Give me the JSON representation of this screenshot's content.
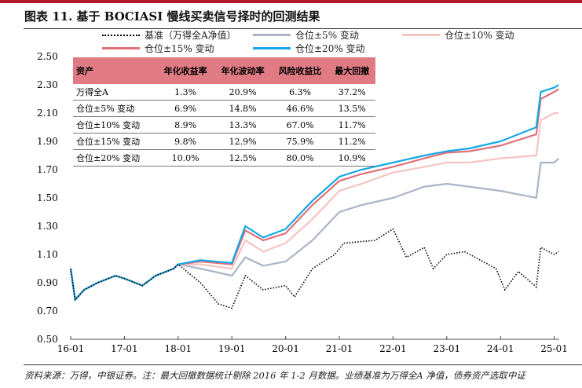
{
  "title": "图表 11. 基于 BOCIASI 慢线买卖信号择时的回测结果",
  "source": "资料来源：万得，中银证券。注：最大回撤数据统计剔除 2016 年 1-2 月数据。业绩基准为万得全A 净值，债券资产选取中证",
  "table": {
    "headers": [
      "资产",
      "年化收益率",
      "年化波动率",
      "风险收益比",
      "最大回撤"
    ],
    "rows": [
      [
        "万得全A",
        "1.3%",
        "20.9%",
        "6.3%",
        "37.2%"
      ],
      [
        "仓位±5% 变动",
        "6.9%",
        "14.8%",
        "46.6%",
        "13.5%"
      ],
      [
        "仓位±10% 变动",
        "8.9%",
        "13.3%",
        "67.0%",
        "11.7%"
      ],
      [
        "仓位±15% 变动",
        "9.8%",
        "12.9%",
        "75.9%",
        "11.2%"
      ],
      [
        "仓位±20% 变动",
        "10.0%",
        "12.5%",
        "80.0%",
        "10.9%"
      ]
    ]
  },
  "chart_data": {
    "type": "line",
    "ylim": [
      0.5,
      2.5
    ],
    "yticks": [
      "0.50",
      "0.70",
      "0.90",
      "1.10",
      "1.30",
      "1.50",
      "1.70",
      "1.90",
      "2.10",
      "2.30",
      "2.50"
    ],
    "xticks": [
      "16-01",
      "17-01",
      "18-01",
      "19-01",
      "20-01",
      "21-01",
      "22-01",
      "23-01",
      "24-01",
      "25-01"
    ],
    "grid": false,
    "legend_position": "top",
    "series": [
      {
        "name": "基准（万得全A净值）",
        "color": "#000000",
        "style": "dotted",
        "points": [
          [
            "2016-01",
            1.0
          ],
          [
            "2016-02",
            0.78
          ],
          [
            "2016-04",
            0.85
          ],
          [
            "2016-07",
            0.9
          ],
          [
            "2016-11",
            0.95
          ],
          [
            "2017-01",
            0.93
          ],
          [
            "2017-05",
            0.88
          ],
          [
            "2017-08",
            0.95
          ],
          [
            "2017-12",
            1.0
          ],
          [
            "2018-01",
            1.03
          ],
          [
            "2018-06",
            0.9
          ],
          [
            "2018-10",
            0.75
          ],
          [
            "2019-01",
            0.72
          ],
          [
            "2019-04",
            0.95
          ],
          [
            "2019-08",
            0.85
          ],
          [
            "2020-01",
            0.88
          ],
          [
            "2020-03",
            0.8
          ],
          [
            "2020-07",
            1.0
          ],
          [
            "2020-12",
            1.1
          ],
          [
            "2021-02",
            1.18
          ],
          [
            "2021-09",
            1.2
          ],
          [
            "2022-01",
            1.28
          ],
          [
            "2022-04",
            1.08
          ],
          [
            "2022-08",
            1.15
          ],
          [
            "2022-10",
            1.0
          ],
          [
            "2023-01",
            1.1
          ],
          [
            "2023-05",
            1.12
          ],
          [
            "2023-12",
            1.0
          ],
          [
            "2024-02",
            0.85
          ],
          [
            "2024-05",
            0.98
          ],
          [
            "2024-09",
            0.87
          ],
          [
            "2024-10",
            1.15
          ],
          [
            "2025-01",
            1.1
          ],
          [
            "2025-02",
            1.12
          ]
        ]
      },
      {
        "name": "仓位±5% 变动",
        "color": "#aab4c8",
        "style": "solid",
        "points": [
          [
            "2016-01",
            1.0
          ],
          [
            "2016-02",
            0.78
          ],
          [
            "2016-04",
            0.85
          ],
          [
            "2016-07",
            0.9
          ],
          [
            "2016-11",
            0.95
          ],
          [
            "2017-01",
            0.93
          ],
          [
            "2017-05",
            0.88
          ],
          [
            "2017-08",
            0.95
          ],
          [
            "2017-12",
            1.0
          ],
          [
            "2018-01",
            1.03
          ],
          [
            "2018-06",
            1.0
          ],
          [
            "2019-01",
            0.95
          ],
          [
            "2019-04",
            1.08
          ],
          [
            "2019-08",
            1.02
          ],
          [
            "2020-01",
            1.05
          ],
          [
            "2020-07",
            1.2
          ],
          [
            "2021-01",
            1.4
          ],
          [
            "2021-06",
            1.45
          ],
          [
            "2022-01",
            1.5
          ],
          [
            "2022-08",
            1.58
          ],
          [
            "2023-01",
            1.6
          ],
          [
            "2023-06",
            1.58
          ],
          [
            "2024-01",
            1.55
          ],
          [
            "2024-09",
            1.5
          ],
          [
            "2024-10",
            1.75
          ],
          [
            "2025-01",
            1.75
          ],
          [
            "2025-02",
            1.78
          ]
        ]
      },
      {
        "name": "仓位±10% 变动",
        "color": "#f6c4c0",
        "style": "solid",
        "points": [
          [
            "2016-01",
            1.0
          ],
          [
            "2016-02",
            0.78
          ],
          [
            "2016-04",
            0.85
          ],
          [
            "2016-07",
            0.9
          ],
          [
            "2016-11",
            0.95
          ],
          [
            "2017-01",
            0.93
          ],
          [
            "2017-05",
            0.88
          ],
          [
            "2017-08",
            0.95
          ],
          [
            "2017-12",
            1.0
          ],
          [
            "2018-01",
            1.03
          ],
          [
            "2018-06",
            1.03
          ],
          [
            "2019-01",
            1.0
          ],
          [
            "2019-04",
            1.2
          ],
          [
            "2019-08",
            1.12
          ],
          [
            "2020-01",
            1.18
          ],
          [
            "2020-07",
            1.35
          ],
          [
            "2021-01",
            1.55
          ],
          [
            "2021-06",
            1.6
          ],
          [
            "2022-01",
            1.68
          ],
          [
            "2022-08",
            1.72
          ],
          [
            "2023-01",
            1.75
          ],
          [
            "2023-06",
            1.75
          ],
          [
            "2024-01",
            1.78
          ],
          [
            "2024-09",
            1.8
          ],
          [
            "2024-10",
            2.05
          ],
          [
            "2025-01",
            2.1
          ],
          [
            "2025-02",
            2.1
          ]
        ]
      },
      {
        "name": "仓位±15% 变动",
        "color": "#e0707a",
        "style": "solid",
        "points": [
          [
            "2016-01",
            1.0
          ],
          [
            "2016-02",
            0.78
          ],
          [
            "2016-04",
            0.85
          ],
          [
            "2016-07",
            0.9
          ],
          [
            "2016-11",
            0.95
          ],
          [
            "2017-01",
            0.93
          ],
          [
            "2017-05",
            0.88
          ],
          [
            "2017-08",
            0.95
          ],
          [
            "2017-12",
            1.0
          ],
          [
            "2018-01",
            1.03
          ],
          [
            "2018-06",
            1.05
          ],
          [
            "2019-01",
            1.03
          ],
          [
            "2019-04",
            1.27
          ],
          [
            "2019-08",
            1.2
          ],
          [
            "2020-01",
            1.25
          ],
          [
            "2020-07",
            1.45
          ],
          [
            "2021-01",
            1.62
          ],
          [
            "2021-06",
            1.67
          ],
          [
            "2022-01",
            1.72
          ],
          [
            "2022-08",
            1.78
          ],
          [
            "2023-01",
            1.82
          ],
          [
            "2023-06",
            1.83
          ],
          [
            "2024-01",
            1.87
          ],
          [
            "2024-09",
            1.95
          ],
          [
            "2024-10",
            2.2
          ],
          [
            "2025-01",
            2.25
          ],
          [
            "2025-02",
            2.27
          ]
        ]
      },
      {
        "name": "仓位±20% 变动",
        "color": "#14a8e6",
        "style": "solid",
        "points": [
          [
            "2016-01",
            1.0
          ],
          [
            "2016-02",
            0.78
          ],
          [
            "2016-04",
            0.85
          ],
          [
            "2016-07",
            0.9
          ],
          [
            "2016-11",
            0.95
          ],
          [
            "2017-01",
            0.93
          ],
          [
            "2017-05",
            0.88
          ],
          [
            "2017-08",
            0.95
          ],
          [
            "2017-12",
            1.0
          ],
          [
            "2018-01",
            1.03
          ],
          [
            "2018-06",
            1.06
          ],
          [
            "2019-01",
            1.04
          ],
          [
            "2019-04",
            1.3
          ],
          [
            "2019-08",
            1.22
          ],
          [
            "2020-01",
            1.28
          ],
          [
            "2020-07",
            1.48
          ],
          [
            "2021-01",
            1.65
          ],
          [
            "2021-06",
            1.7
          ],
          [
            "2022-01",
            1.75
          ],
          [
            "2022-08",
            1.8
          ],
          [
            "2023-01",
            1.83
          ],
          [
            "2023-06",
            1.85
          ],
          [
            "2024-01",
            1.9
          ],
          [
            "2024-09",
            2.0
          ],
          [
            "2024-10",
            2.25
          ],
          [
            "2025-01",
            2.28
          ],
          [
            "2025-02",
            2.3
          ]
        ]
      }
    ]
  }
}
